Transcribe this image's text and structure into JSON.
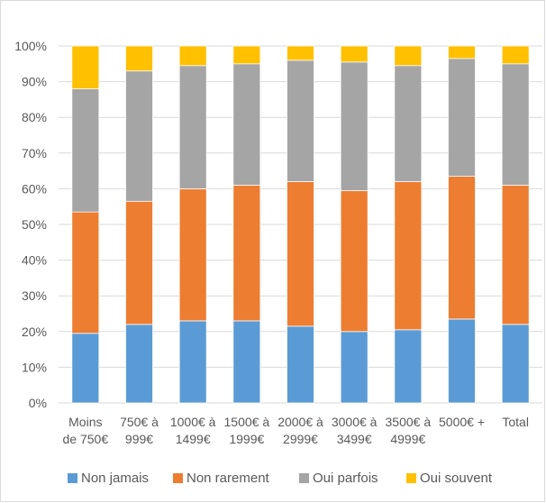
{
  "chart_data": {
    "type": "bar",
    "stacked": true,
    "percent_stacked": true,
    "title": "",
    "xlabel": "",
    "ylabel": "",
    "ylim": [
      0,
      100
    ],
    "y_ticks": [
      "0%",
      "10%",
      "20%",
      "30%",
      "40%",
      "50%",
      "60%",
      "70%",
      "80%",
      "90%",
      "100%"
    ],
    "categories": [
      [
        "Moins",
        "de 750€"
      ],
      [
        "750€ à",
        "999€"
      ],
      [
        "1000€ à",
        "1499€"
      ],
      [
        "1500€ à",
        "1999€"
      ],
      [
        "2000€ à",
        "2999€"
      ],
      [
        "3000€ à",
        "3499€"
      ],
      [
        "3500€ à",
        "4999€"
      ],
      [
        "5000€ +"
      ],
      [
        "Total"
      ]
    ],
    "series": [
      {
        "name": "Non jamais",
        "color": "#5B9BD5",
        "values": [
          19.5,
          22,
          23,
          23,
          21.5,
          20,
          20.5,
          23.5,
          22
        ]
      },
      {
        "name": "Non rarement",
        "color": "#ED7D31",
        "values": [
          34,
          34.5,
          37,
          38,
          40.5,
          39.5,
          41.5,
          40,
          39
        ]
      },
      {
        "name": "Oui parfois",
        "color": "#A5A5A5",
        "values": [
          34.5,
          36.5,
          34.5,
          34,
          34,
          36,
          32.5,
          33,
          34
        ]
      },
      {
        "name": "Oui souvent",
        "color": "#FFC000",
        "values": [
          12,
          7,
          5.5,
          5,
          4,
          4.5,
          5.5,
          3.5,
          5
        ]
      }
    ],
    "grid": true,
    "legend_position": "bottom"
  }
}
